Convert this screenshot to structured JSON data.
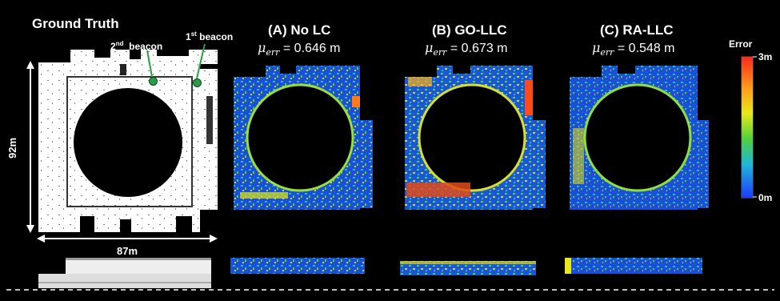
{
  "ground_truth": {
    "title": "Ground Truth",
    "beacon2": {
      "ord": "2",
      "suffix": "nd",
      "word": "beacon"
    },
    "beacon1": {
      "ord": "1",
      "suffix": "st",
      "word": "beacon"
    },
    "height_label": "92m",
    "width_label": "87m"
  },
  "panels": [
    {
      "title": "(A) No LC",
      "mu_symbol": "μ",
      "mu_sub": "err",
      "value": " = 0.646 m"
    },
    {
      "title": "(B) GO-LLC",
      "mu_symbol": "μ",
      "mu_sub": "err",
      "value": " = 0.673 m"
    },
    {
      "title": "(C) RA-LLC",
      "mu_symbol": "μ",
      "mu_sub": "err",
      "value": " = 0.548 m"
    }
  ],
  "colorbar": {
    "title": "Error",
    "max_label": "3m",
    "min_label": "0m"
  },
  "colors": {
    "background": "#000000",
    "beacon": "#2a9d48",
    "error_high": "#ff2a1a",
    "error_low": "#1a3cff"
  }
}
